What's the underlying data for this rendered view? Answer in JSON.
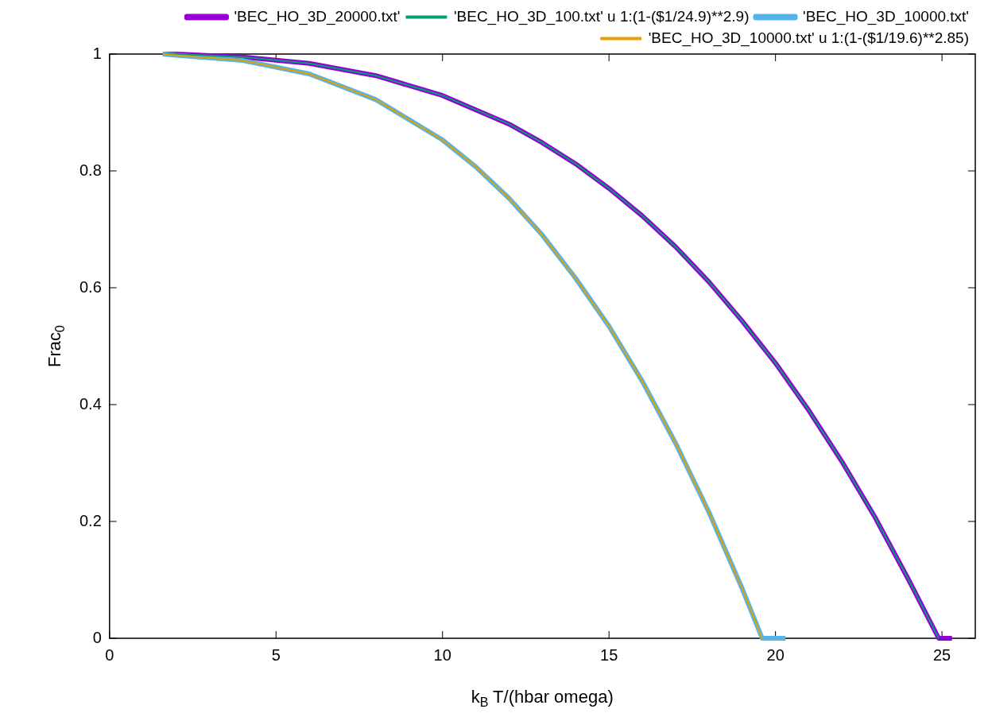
{
  "chart_data": {
    "type": "line",
    "xlabel": "k$_{B}$ T/(hbar omega)",
    "ylabel": "Frac$_{0}$",
    "xlim": [
      0,
      26
    ],
    "ylim": [
      0,
      1
    ],
    "xticks": [
      0,
      5,
      10,
      15,
      20,
      25
    ],
    "yticks": [
      0,
      0.2,
      0.4,
      0.6,
      0.8,
      1
    ],
    "legend": "top right",
    "marker": "none",
    "line_style": "solid",
    "grid": false,
    "series": [
      {
        "name": "'BEC_HO_3D_20000.txt'",
        "color": "#9400d3",
        "x": [
          1.6,
          2,
          4,
          6,
          8,
          10,
          12,
          13,
          14,
          15,
          16,
          17,
          18,
          19,
          20,
          21,
          22,
          23,
          24,
          24.9,
          25.3
        ],
        "values": [
          1,
          1,
          0.995,
          0.984,
          0.963,
          0.929,
          0.88,
          0.848,
          0.812,
          0.77,
          0.723,
          0.67,
          0.61,
          0.543,
          0.471,
          0.39,
          0.302,
          0.206,
          0.1,
          0,
          0
        ]
      },
      {
        "name": "'BEC_HO_3D_100.txt' u 1:(1-($1/24.9)**2.9)",
        "color": "#009e73",
        "x": [
          1.6,
          2,
          4,
          6,
          8,
          10,
          12,
          13,
          14,
          15,
          16,
          17,
          18,
          19,
          20,
          21,
          22,
          23,
          24,
          24.9
        ],
        "values": [
          1,
          1,
          0.995,
          0.984,
          0.963,
          0.929,
          0.88,
          0.848,
          0.812,
          0.77,
          0.723,
          0.67,
          0.61,
          0.543,
          0.471,
          0.39,
          0.302,
          0.206,
          0.1,
          0
        ]
      },
      {
        "name": "'BEC_HO_3D_10000.txt'",
        "color": "#56b4e9",
        "x": [
          1.6,
          2,
          4,
          6,
          8,
          10,
          11,
          12,
          13,
          14,
          15,
          16,
          17,
          18,
          19,
          19.6,
          20.3
        ],
        "values": [
          1,
          0.998,
          0.989,
          0.966,
          0.922,
          0.853,
          0.807,
          0.753,
          0.69,
          0.616,
          0.534,
          0.44,
          0.334,
          0.216,
          0.085,
          0,
          0
        ]
      },
      {
        "name": "'BEC_HO_3D_10000.txt' u 1:(1-($1/19.6)**2.85)",
        "color": "#e69f00",
        "x": [
          1.6,
          2,
          4,
          6,
          8,
          10,
          11,
          12,
          13,
          14,
          15,
          16,
          17,
          18,
          19,
          19.6
        ],
        "values": [
          1,
          0.998,
          0.989,
          0.966,
          0.922,
          0.853,
          0.807,
          0.753,
          0.69,
          0.616,
          0.534,
          0.44,
          0.334,
          0.216,
          0.085,
          0
        ]
      }
    ]
  }
}
